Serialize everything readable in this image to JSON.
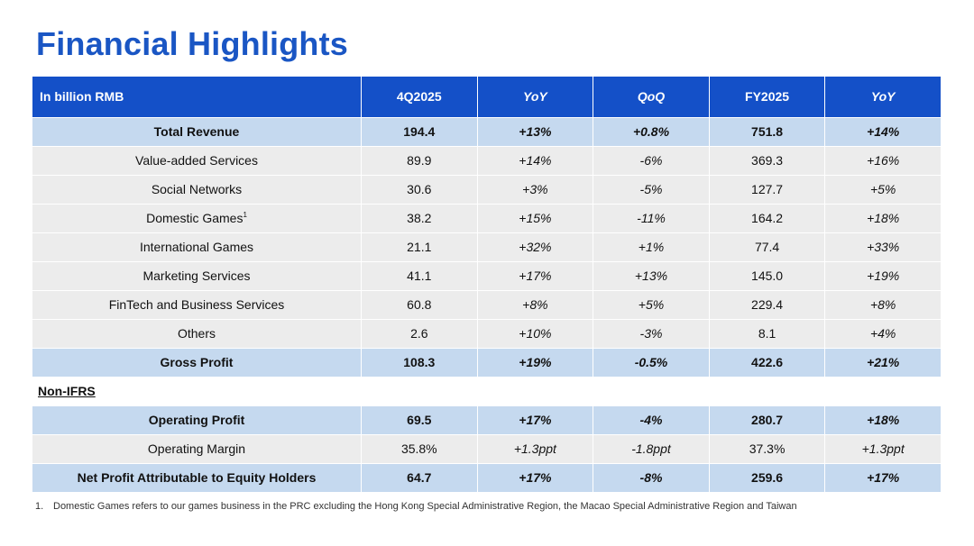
{
  "title": "Financial Highlights",
  "table": {
    "headers": [
      "In billion RMB",
      "4Q2025",
      "YoY",
      "QoQ",
      "FY2025",
      "YoY"
    ],
    "rows": [
      {
        "label": "Total Revenue",
        "sup": "",
        "v": [
          "194.4",
          "+13%",
          "+0.8%",
          "751.8",
          "+14%"
        ]
      },
      {
        "label": "Value-added Services",
        "sup": "",
        "v": [
          "89.9",
          "+14%",
          "-6%",
          "369.3",
          "+16%"
        ]
      },
      {
        "label": "Social Networks",
        "sup": "",
        "v": [
          "30.6",
          "+3%",
          "-5%",
          "127.7",
          "+5%"
        ]
      },
      {
        "label": "Domestic Games",
        "sup": "1",
        "v": [
          "38.2",
          "+15%",
          "-11%",
          "164.2",
          "+18%"
        ]
      },
      {
        "label": "International Games",
        "sup": "",
        "v": [
          "21.1",
          "+32%",
          "+1%",
          "77.4",
          "+33%"
        ]
      },
      {
        "label": "Marketing Services",
        "sup": "",
        "v": [
          "41.1",
          "+17%",
          "+13%",
          "145.0",
          "+19%"
        ]
      },
      {
        "label": "FinTech and Business Services",
        "sup": "",
        "v": [
          "60.8",
          "+8%",
          "+5%",
          "229.4",
          "+8%"
        ]
      },
      {
        "label": "Others",
        "sup": "",
        "v": [
          "2.6",
          "+10%",
          "-3%",
          "8.1",
          "+4%"
        ]
      },
      {
        "label": "Gross Profit",
        "sup": "",
        "v": [
          "108.3",
          "+19%",
          "-0.5%",
          "422.6",
          "+21%"
        ]
      }
    ],
    "section_label": "Non-IFRS",
    "non_ifrs_rows": [
      {
        "label": "Operating Profit",
        "v": [
          "69.5",
          "+17%",
          "-4%",
          "280.7",
          "+18%"
        ]
      },
      {
        "label": "Operating Margin",
        "v": [
          "35.8%",
          "+1.3ppt",
          "-1.8ppt",
          "37.3%",
          "+1.3ppt"
        ]
      },
      {
        "label": "Net Profit Attributable to Equity Holders",
        "v": [
          "64.7",
          "+17%",
          "-8%",
          "259.6",
          "+17%"
        ]
      }
    ]
  },
  "footnote": {
    "number": "1.",
    "text": "Domestic Games refers to our games business in the PRC excluding the Hong Kong Special Administrative Region, the Macao Special Administrative Region and Taiwan"
  },
  "colors": {
    "title": "#1a56c4",
    "header_bg": "#1450c8",
    "highlight_row": "#c5d9ef",
    "normal_row": "#ececec"
  }
}
